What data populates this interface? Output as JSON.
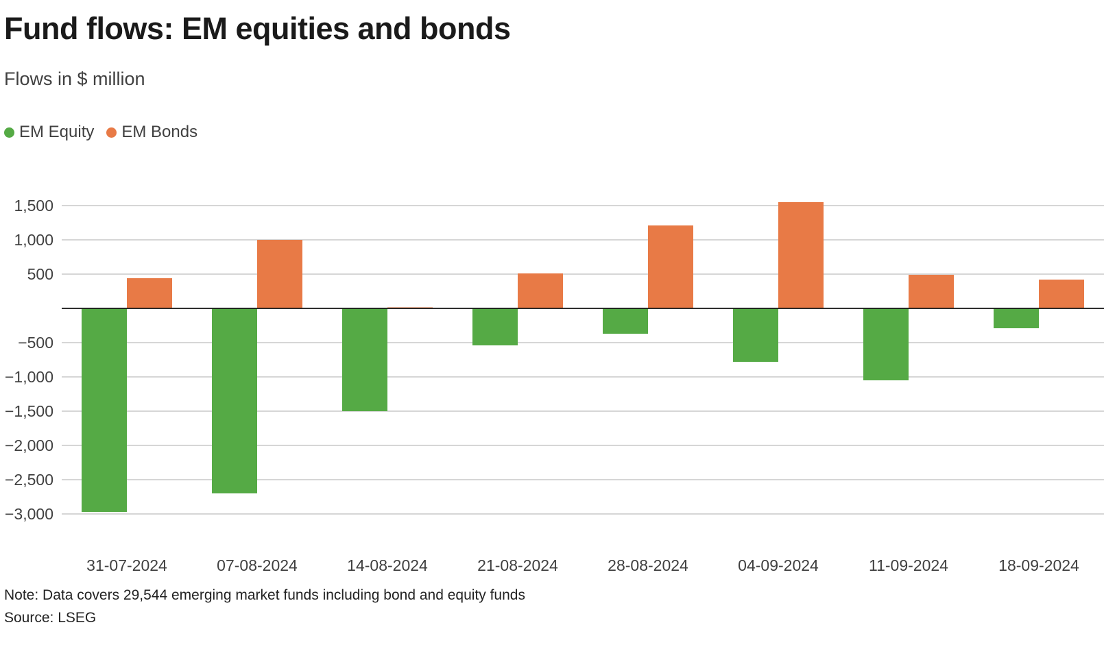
{
  "title": "Fund flows: EM equities and bonds",
  "subtitle": "Flows in $ million",
  "note": "Note: Data covers 29,544 emerging market funds including bond and equity funds",
  "source": "Source: LSEG",
  "colors": {
    "equity": "#55aa45",
    "bonds": "#e87a46",
    "grid": "#c8c8c8",
    "zero": "#111111",
    "tick_text": "#404040"
  },
  "chart_data": {
    "type": "bar",
    "title": "Fund flows: EM equities and bonds",
    "subtitle": "Flows in $ million",
    "xlabel": "",
    "ylabel": "",
    "categories": [
      "31-07-2024",
      "07-08-2024",
      "14-08-2024",
      "21-08-2024",
      "28-08-2024",
      "04-09-2024",
      "11-09-2024",
      "18-09-2024"
    ],
    "series": [
      {
        "name": "EM Equity",
        "values": [
          -2970,
          -2700,
          -1500,
          -540,
          -370,
          -780,
          -1050,
          -290
        ]
      },
      {
        "name": "EM Bonds",
        "values": [
          440,
          1000,
          15,
          510,
          1210,
          1550,
          490,
          420
        ]
      }
    ],
    "ylim": [
      -3000,
      1500
    ],
    "yticks": [
      1500,
      1000,
      500,
      0,
      -500,
      -1000,
      -1500,
      -2000,
      -2500,
      -3000
    ],
    "ytick_labels": [
      "1,500",
      "1,000",
      "500",
      "",
      "−500",
      "−1,000",
      "−1,500",
      "−2,000",
      "−2,500",
      "−3,000"
    ],
    "grid": true,
    "legend_position": "top-left"
  }
}
